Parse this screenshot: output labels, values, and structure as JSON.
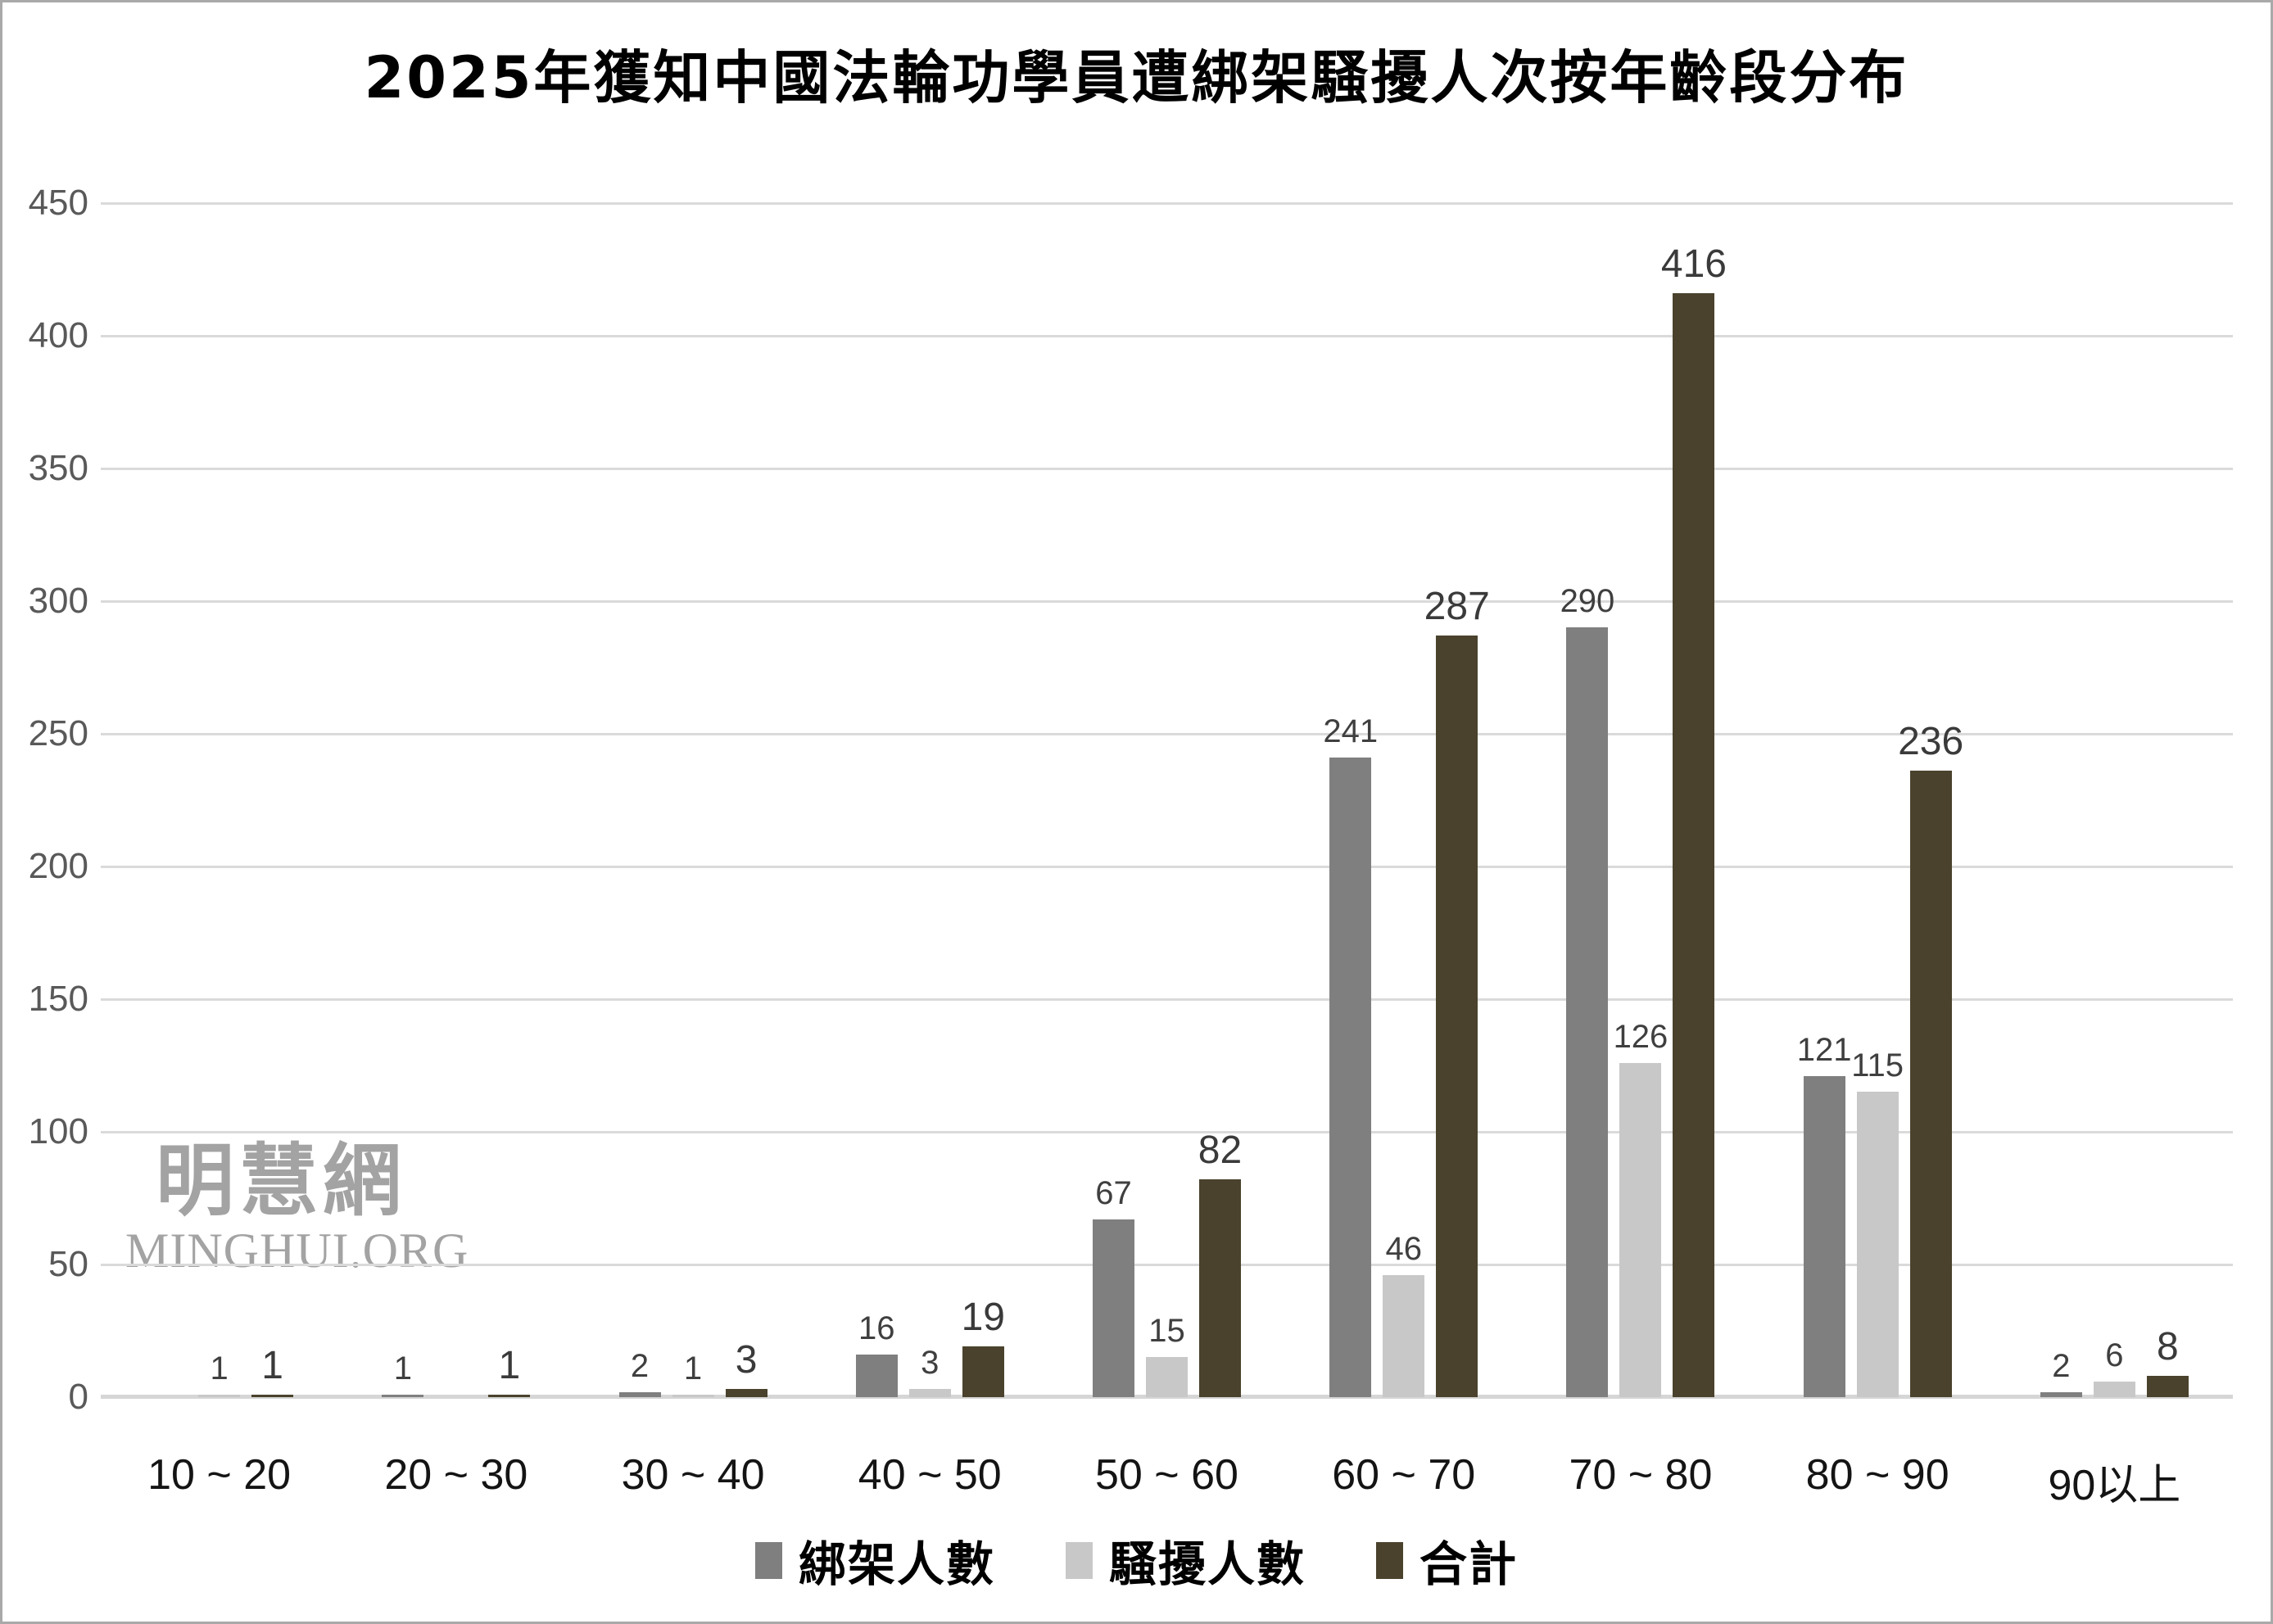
{
  "title": "2025年獲知中國法輪功學員遭綁架騷擾人次按年齡段分布",
  "watermark": {
    "cjk": "明慧網",
    "latin": "MINGHUI.ORG"
  },
  "chart_data": {
    "type": "bar",
    "title": "2025年獲知中國法輪功學員遭綁架騷擾人次按年齡段分布",
    "categories": [
      "10 ~ 20",
      "20 ~ 30",
      "30 ~ 40",
      "40 ~ 50",
      "50 ~ 60",
      "60 ~ 70",
      "70 ~ 80",
      "80 ~ 90",
      "90以上"
    ],
    "series": [
      {
        "name": "綁架人數",
        "color": "#7f7f7f",
        "values": [
          null,
          1,
          2,
          16,
          67,
          241,
          290,
          121,
          2
        ]
      },
      {
        "name": "騷擾人數",
        "color": "#c8c8c8",
        "values": [
          1,
          null,
          1,
          3,
          15,
          46,
          126,
          115,
          6
        ]
      },
      {
        "name": "合計",
        "color": "#4a422c",
        "values": [
          1,
          1,
          3,
          19,
          82,
          287,
          416,
          236,
          8
        ]
      }
    ],
    "xlabel": "",
    "ylabel": "",
    "ylim": [
      0,
      450
    ],
    "yticks": [
      0,
      50,
      100,
      150,
      200,
      250,
      300,
      350,
      400,
      450
    ],
    "grid": true,
    "gridline_color": "#dadada",
    "legend_position": "bottom",
    "background_color": "#ffffff"
  }
}
